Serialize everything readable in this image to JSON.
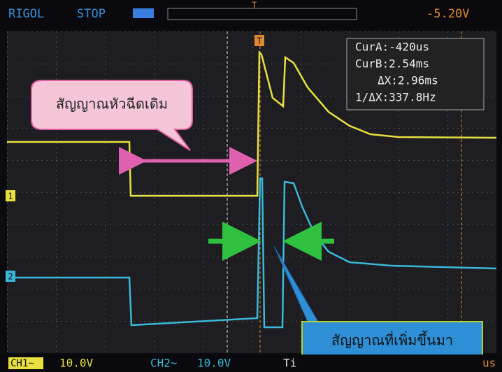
{
  "header": {
    "brand": "RIGOL",
    "status": "STOP",
    "trigger_level": "-5.20V"
  },
  "cursors": [
    "CurA:-420us",
    "CurB:2.54ms",
    "ΔX:2.96ms",
    "1/ΔX:337.8Hz"
  ],
  "markers": {
    "trigger": "T",
    "ch1": "1",
    "ch2": "2"
  },
  "callouts": {
    "original_signal": "สัญญาณหัวฉีดเดิม",
    "added_signal": "สัญญาณที่เพิ่มขึ้นมา"
  },
  "footer": {
    "ch1_label": "CH1~",
    "ch1_scale": "10.0V",
    "ch2_label": "CH2~",
    "ch2_scale": "10.0V",
    "time_label": "Ti",
    "time_unit": "us"
  }
}
